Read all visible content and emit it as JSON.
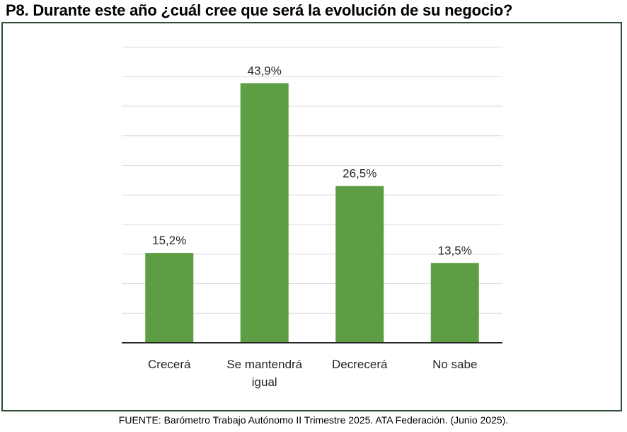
{
  "title": "P8. Durante este año ¿cuál cree que será la evolución de su negocio?",
  "source": "FUENTE: Barómetro Trabajo Autónomo II Trimestre 2025. ATA Federación. (Junio 2025).",
  "colors": {
    "bar": "#5d9e44",
    "frame": "#2e4a34",
    "grid": "#d9d9d9"
  },
  "chart_data": {
    "type": "bar",
    "categories": [
      [
        "Crecerá"
      ],
      [
        "Se mantendrá",
        "igual"
      ],
      [
        "Decrecerá"
      ],
      [
        "No sabe"
      ]
    ],
    "values": [
      15.2,
      43.9,
      26.5,
      13.5
    ],
    "data_labels": [
      "15,2%",
      "43,9%",
      "26,5%",
      "13,5%"
    ],
    "ylim": [
      0,
      50
    ],
    "grid": true,
    "legend": "none"
  }
}
